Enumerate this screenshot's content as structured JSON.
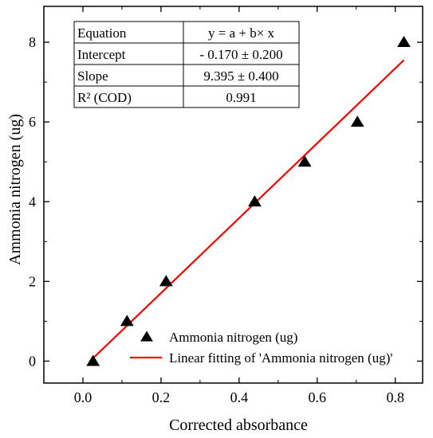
{
  "chart_data": {
    "type": "scatter",
    "xlabel": "Corrected absorbance",
    "ylabel": "Ammonia nitrogen (ug)",
    "xlim": [
      -0.1,
      0.87
    ],
    "ylim": [
      -0.55,
      8.9
    ],
    "x_ticks": [
      0.0,
      0.2,
      0.4,
      0.6,
      0.8
    ],
    "x_tick_labels": [
      "0.0",
      "0.2",
      "0.4",
      "0.6",
      "0.8"
    ],
    "y_ticks": [
      0,
      2,
      4,
      6,
      8
    ],
    "y_tick_labels": [
      "0",
      "2",
      "4",
      "6",
      "8"
    ],
    "grid": false,
    "legend_position": "bottom-right",
    "series": [
      {
        "name": "Ammonia nitrogen (ug)",
        "type": "scatter",
        "marker": "triangle",
        "color": "#000000",
        "x": [
          0.026,
          0.113,
          0.213,
          0.44,
          0.568,
          0.703,
          0.822
        ],
        "y": [
          0,
          1,
          2,
          4,
          5,
          6,
          8
        ]
      },
      {
        "name": "Linear fitting of 'Ammonia nitrogen (ug)'",
        "type": "line",
        "color": "#ff0000",
        "x": [
          0.026,
          0.822
        ],
        "y": [
          0.074,
          7.553
        ]
      }
    ],
    "fit_table": {
      "rows": [
        [
          "Equation",
          "y = a + b× x"
        ],
        [
          "Intercept",
          "- 0.170 ± 0.200"
        ],
        [
          "Slope",
          "9.395 ± 0.400"
        ],
        [
          "R² (COD)",
          "0.991"
        ]
      ]
    }
  }
}
